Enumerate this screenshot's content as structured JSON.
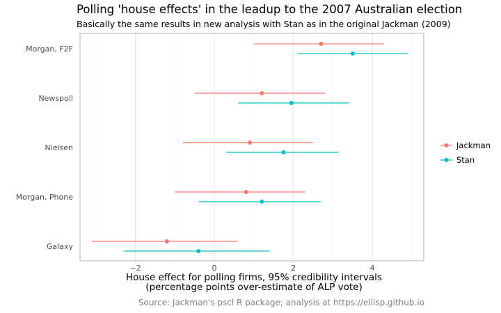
{
  "chart_data": {
    "type": "errorbar",
    "title": "Polling 'house effects' in the leadup to the 2007 Australian election",
    "subtitle": "Basically the same results in new analysis with Stan as in the original Jackman (2009)",
    "xlabel_line1": "House effect for polling firms, 95% credibility intervals",
    "xlabel_line2": "(percentage points over-estimate of ALP vote)",
    "caption": "Source: Jackman's pscl R package; analysis at https://ellisp.github.io",
    "categories": [
      "Morgan, F2F",
      "Newspoll",
      "Nielsen",
      "Morgan, Phone",
      "Galaxy"
    ],
    "xlim": [
      -3.4,
      5.3
    ],
    "x_ticks": [
      -2,
      0,
      2,
      4
    ],
    "x_tick_labels": [
      "−2",
      "0",
      "2",
      "4"
    ],
    "grid": true,
    "legend_position": "right",
    "series": [
      {
        "name": "Jackman",
        "color": "#F8766D",
        "estimates": [
          2.7,
          1.2,
          0.9,
          0.8,
          -1.2
        ],
        "lower": [
          1.0,
          -0.5,
          -0.8,
          -1.0,
          -3.1
        ],
        "upper": [
          4.3,
          2.8,
          2.5,
          2.3,
          0.6
        ]
      },
      {
        "name": "Stan",
        "color": "#00BFC4",
        "estimates": [
          3.5,
          1.95,
          1.75,
          1.2,
          -0.4
        ],
        "lower": [
          2.1,
          0.6,
          0.3,
          -0.4,
          -2.3
        ],
        "upper": [
          4.9,
          3.4,
          3.15,
          2.7,
          1.4
        ]
      }
    ]
  }
}
